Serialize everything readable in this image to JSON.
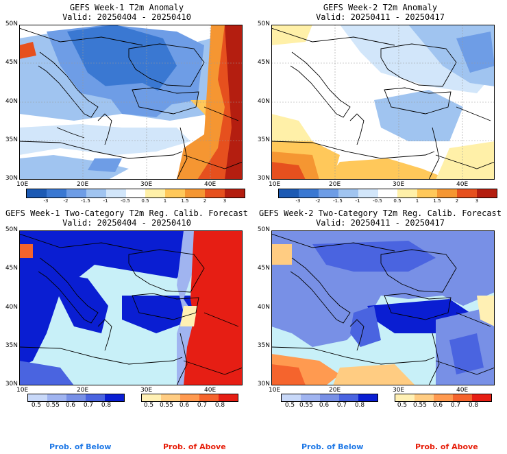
{
  "panels": [
    {
      "title1": "GEFS Week-1 T2m Anomaly",
      "title2": "Valid: 20250404 - 20250410"
    },
    {
      "title1": "GEFS Week-2 T2m Anomaly",
      "title2": "Valid: 20250411 - 20250417"
    },
    {
      "title1": "GEFS Week-1 Two-Category T2m Reg. Calib. Forecast",
      "title2": "Valid: 20250404 - 20250410"
    },
    {
      "title1": "GEFS Week-2 Two-Category T2m Reg. Calib. Forecast",
      "title2": "Valid: 20250411 - 20250417"
    }
  ],
  "lat_labels": [
    "50N",
    "45N",
    "40N",
    "35N",
    "30N"
  ],
  "lon_labels": [
    "10E",
    "20E",
    "30E",
    "40E"
  ],
  "anomaly_colorbar": {
    "ticks": [
      "-3",
      "-2",
      "-1.5",
      "-1",
      "-0.5",
      "0.5",
      "1",
      "1.5",
      "2",
      "3"
    ],
    "colors": [
      "#1c5ab4",
      "#3a78d2",
      "#6e9de6",
      "#a0c4f0",
      "#d2e6fa",
      "#ffffff",
      "#fff0a8",
      "#ffc85a",
      "#f59632",
      "#e6501e",
      "#b41e10"
    ]
  },
  "prob_colorbar": {
    "below_ticks": [
      "0.5",
      "0.55",
      "0.6",
      "0.7",
      "0.8"
    ],
    "above_ticks": [
      "0.5",
      "0.55",
      "0.6",
      "0.7",
      "0.8"
    ],
    "below_colors": [
      "#c8d8f8",
      "#a0b4f0",
      "#7890e6",
      "#4a64e0",
      "#0a1ed2"
    ],
    "above_colors": [
      "#fff0b4",
      "#ffcc82",
      "#ff9a50",
      "#f5642d",
      "#e61e14"
    ]
  },
  "footer": {
    "below_label": "Prob. of Below",
    "above_label": "Prob. of Above",
    "below_color": "#1e78e6",
    "above_color": "#e61e0a"
  }
}
